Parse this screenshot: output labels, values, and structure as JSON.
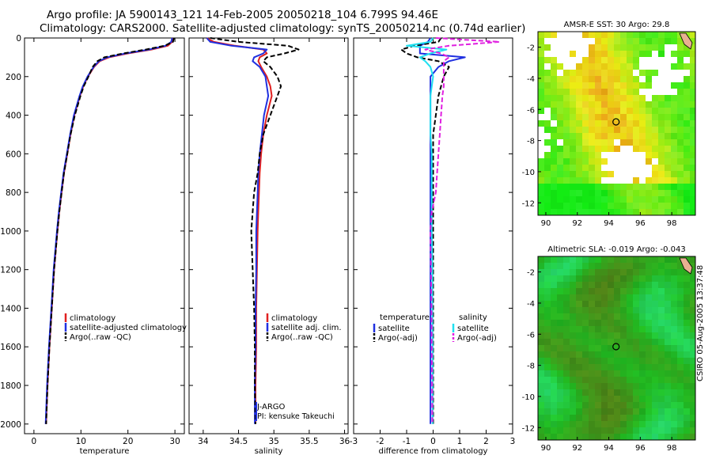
{
  "header": {
    "line1": "Argo profile: JA 5900143_121 14-Feb-2005 20050218_104 6.799S 94.46E",
    "line2": "Climatology: CARS2000. Satellite-adjusted climatology: synTS_20050214.nc (0.74d earlier)"
  },
  "credit": "CSIRO 05-Aug-2005 13:37:48",
  "colors": {
    "climatology": "#e02020",
    "satellite": "#2030e0",
    "argo": "#000000",
    "salinity_satellite": "#20e0f0",
    "salinity_argo": "#e020e0"
  },
  "chart_data": [
    {
      "id": "temperature",
      "type": "line",
      "xlabel": "temperature",
      "ylabel": "",
      "xlim": [
        -2,
        32
      ],
      "ylim": [
        2050,
        0
      ],
      "xticks": [
        0,
        10,
        20,
        30
      ],
      "yticks": [
        0,
        200,
        400,
        600,
        800,
        1000,
        1200,
        1400,
        1600,
        1800,
        2000
      ],
      "depth": [
        0,
        20,
        40,
        60,
        80,
        100,
        120,
        150,
        200,
        250,
        300,
        400,
        500,
        600,
        700,
        800,
        900,
        1000,
        1200,
        1400,
        1600,
        1800,
        2000
      ],
      "series": [
        {
          "name": "climatology",
          "style": "solid",
          "color": "#e02020",
          "values": [
            29.5,
            29.4,
            28.5,
            25.0,
            20.0,
            16.0,
            14.0,
            12.8,
            11.5,
            10.5,
            9.8,
            8.6,
            7.8,
            7.1,
            6.4,
            5.9,
            5.4,
            5.0,
            4.3,
            3.8,
            3.3,
            2.9,
            2.6
          ]
        },
        {
          "name": "satellite-adjusted climatology",
          "style": "solid",
          "color": "#2030e0",
          "values": [
            29.4,
            29.2,
            28.0,
            24.5,
            19.5,
            15.6,
            13.8,
            12.7,
            11.4,
            10.4,
            9.7,
            8.5,
            7.7,
            7.0,
            6.3,
            5.8,
            5.3,
            4.9,
            4.2,
            3.7,
            3.2,
            2.8,
            2.5
          ]
        },
        {
          "name": "Argo(..raw -QC)",
          "style": "dashed",
          "color": "#000000",
          "values": [
            29.8,
            29.6,
            27.8,
            23.8,
            19.0,
            15.0,
            13.5,
            12.5,
            11.6,
            10.6,
            9.9,
            8.7,
            7.8,
            7.1,
            6.4,
            5.9,
            5.4,
            5.0,
            4.3,
            3.8,
            3.3,
            2.9,
            2.6
          ]
        }
      ],
      "legend": [
        "climatology",
        "satellite-adjusted climatology",
        "Argo(..raw -QC)"
      ]
    },
    {
      "id": "salinity",
      "type": "line",
      "xlabel": "salinity",
      "xlim": [
        33.8,
        36.05
      ],
      "ylim": [
        2050,
        0
      ],
      "xticks": [
        34,
        34.5,
        35,
        35.5,
        36
      ],
      "depth": [
        0,
        20,
        40,
        60,
        80,
        100,
        120,
        150,
        200,
        250,
        300,
        400,
        500,
        600,
        700,
        800,
        900,
        1000,
        1200,
        1400,
        1600,
        1800,
        2000
      ],
      "series": [
        {
          "name": "climatology",
          "style": "solid",
          "color": "#e02020",
          "values": [
            34.05,
            34.15,
            34.45,
            34.85,
            34.9,
            34.8,
            34.78,
            34.82,
            34.9,
            34.95,
            34.97,
            34.9,
            34.85,
            34.82,
            34.8,
            34.79,
            34.78,
            34.77,
            34.76,
            34.75,
            34.75,
            34.74,
            34.74
          ]
        },
        {
          "name": "satellite adj. clim.",
          "style": "solid",
          "color": "#2030e0",
          "values": [
            34.05,
            34.1,
            34.4,
            34.9,
            34.85,
            34.72,
            34.7,
            34.8,
            34.88,
            34.9,
            34.92,
            34.86,
            34.83,
            34.8,
            34.78,
            34.77,
            34.76,
            34.75,
            34.75,
            34.74,
            34.74,
            34.73,
            34.73
          ]
        },
        {
          "name": "Argo(..raw -QC)",
          "style": "dashed",
          "color": "#000000",
          "values": [
            34.1,
            34.5,
            35.2,
            35.35,
            35.15,
            34.9,
            34.85,
            34.95,
            35.05,
            35.1,
            35.05,
            34.95,
            34.85,
            34.8,
            34.77,
            34.72,
            34.7,
            34.68,
            34.7,
            34.72,
            34.73,
            34.73,
            34.74
          ]
        }
      ],
      "legend": [
        "climatology",
        "satellite adj. clim.",
        "Argo(..raw -QC)"
      ],
      "annotations": [
        "J-ARGO",
        "PI: kensuke Takeuchi"
      ]
    },
    {
      "id": "difference",
      "type": "line",
      "xlabel": "difference from climatology",
      "xlim": [
        -3,
        3
      ],
      "ylim": [
        2050,
        0
      ],
      "xticks": [
        -3,
        -2,
        -1,
        0,
        1,
        2,
        3
      ],
      "depth": [
        0,
        20,
        40,
        60,
        80,
        100,
        120,
        150,
        200,
        250,
        300,
        400,
        500,
        600,
        700,
        800,
        900,
        1000,
        1200,
        1400,
        1600,
        1800,
        2000
      ],
      "series": [
        {
          "name": "temperature satellite",
          "style": "solid",
          "color": "#2030e0",
          "values": [
            -0.1,
            -0.2,
            -0.5,
            -0.5,
            -0.5,
            1.2,
            0.6,
            0.2,
            -0.1,
            -0.1,
            -0.1,
            -0.1,
            -0.1,
            -0.1,
            -0.1,
            -0.1,
            -0.1,
            -0.1,
            -0.1,
            -0.1,
            -0.1,
            -0.1,
            -0.1
          ]
        },
        {
          "name": "temperature Argo(-adj)",
          "style": "dashed",
          "color": "#000000",
          "values": [
            0.3,
            0.2,
            -0.7,
            -1.2,
            -1.0,
            -0.6,
            0.2,
            0.6,
            0.4,
            0.3,
            0.2,
            0.1,
            0.0,
            0.0,
            0.0,
            0.0,
            0.0,
            0.0,
            0.0,
            0.0,
            0.0,
            0.0,
            0.0
          ]
        },
        {
          "name": "salinity satellite",
          "style": "solid",
          "color": "#20e0f0",
          "values": [
            0.0,
            -0.1,
            -1.0,
            0.5,
            -0.1,
            -0.5,
            -0.3,
            -0.1,
            0.0,
            -0.05,
            -0.1,
            -0.1,
            -0.1,
            -0.05,
            -0.05,
            -0.05,
            -0.05,
            -0.05,
            -0.03,
            -0.03,
            -0.02,
            -0.02,
            -0.02
          ]
        },
        {
          "name": "salinity Argo(-adj)",
          "style": "dashed",
          "color": "#e020e0",
          "values": [
            0.1,
            2.5,
            0.6,
            -0.3,
            0.3,
            0.6,
            0.4,
            0.4,
            0.4,
            0.4,
            0.35,
            0.3,
            0.25,
            0.2,
            0.15,
            0.1,
            -0.05,
            -0.1,
            -0.08,
            -0.06,
            -0.05,
            -0.04,
            -0.03
          ]
        }
      ],
      "legend_temperature_title": "temperature",
      "legend_salinity_title": "salinity",
      "legend": [
        "satellite",
        "Argo(-adj)",
        "satellite",
        "Argo(-adj)"
      ]
    },
    {
      "id": "sst_map",
      "type": "heatmap",
      "title": "AMSR-E SST: 30 Argo: 29.8",
      "xlim": [
        89.5,
        99.5
      ],
      "ylim": [
        -12.8,
        -1.0
      ],
      "xticks": [
        90,
        92,
        94,
        96,
        98
      ],
      "yticks": [
        -2,
        -4,
        -6,
        -8,
        -10,
        -12
      ],
      "profile_location": [
        94.46,
        -6.799
      ]
    },
    {
      "id": "sla_map",
      "type": "heatmap",
      "title": "Altimetric SLA: -0.019 Argo: -0.043",
      "xlim": [
        89.5,
        99.5
      ],
      "ylim": [
        -12.8,
        -1.0
      ],
      "xticks": [
        90,
        92,
        94,
        96,
        98
      ],
      "yticks": [
        -2,
        -4,
        -6,
        -8,
        -10,
        -12
      ],
      "profile_location": [
        94.46,
        -6.799
      ]
    }
  ]
}
